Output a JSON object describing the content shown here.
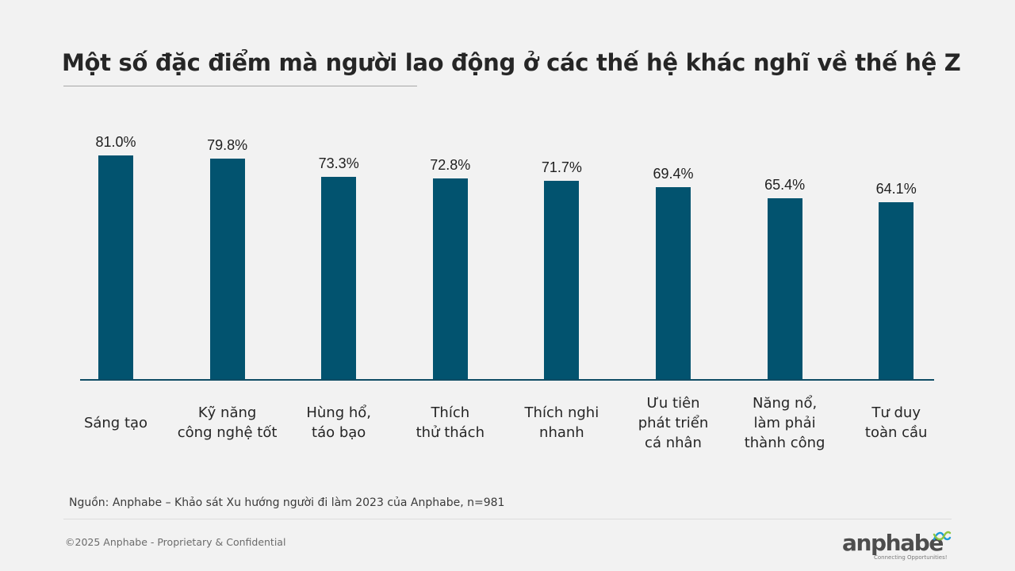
{
  "title": "Một số đặc điểm mà người lao động ở các thế hệ khác nghĩ về thế hệ Z",
  "source": "Nguồn: Anphabe – Khảo sát Xu hướng người đi làm 2023 của Anphabe, n=981",
  "footer": {
    "copyright": "©2025 Anphabe - Proprietary & Confidential",
    "logo_text": "anphabe",
    "logo_tagline": "Connecting Opportunities!"
  },
  "colors": {
    "bar": "#02536f",
    "background": "#f2f2f2",
    "logo_icon_blue": "#1b9ad6",
    "logo_icon_green": "#8cc63f"
  },
  "chart_data": {
    "type": "bar",
    "title": "Một số đặc điểm mà người lao động ở các thế hệ khác nghĩ về thế hệ Z",
    "xlabel": "",
    "ylabel": "",
    "categories": [
      "Sáng tạo",
      "Kỹ năng công nghệ tốt",
      "Hùng hổ, táo bạo",
      "Thích thử thách",
      "Thích nghi nhanh",
      "Ưu tiên phát triển cá nhân",
      "Năng nổ, làm phải thành công",
      "Tư duy toàn cầu"
    ],
    "category_display": [
      "Sáng tạo",
      "Kỹ năng\ncông nghệ tốt",
      "Hùng hổ,\ntáo bạo",
      "Thích\nthử thách",
      "Thích nghi\nnhanh",
      "Ưu tiên\nphát triển\ncá nhân",
      "Năng nổ,\nlàm phải\nthành công",
      "Tư duy\ntoàn cầu"
    ],
    "values": [
      81.0,
      79.8,
      73.3,
      72.8,
      71.7,
      69.4,
      65.4,
      64.1
    ],
    "value_labels": [
      "81.0%",
      "79.8%",
      "73.3%",
      "72.8%",
      "71.7%",
      "69.4%",
      "65.4%",
      "64.1%"
    ],
    "unit": "%",
    "ylim": [
      0,
      100
    ],
    "grid": false,
    "legend": null,
    "data_labels": true
  }
}
